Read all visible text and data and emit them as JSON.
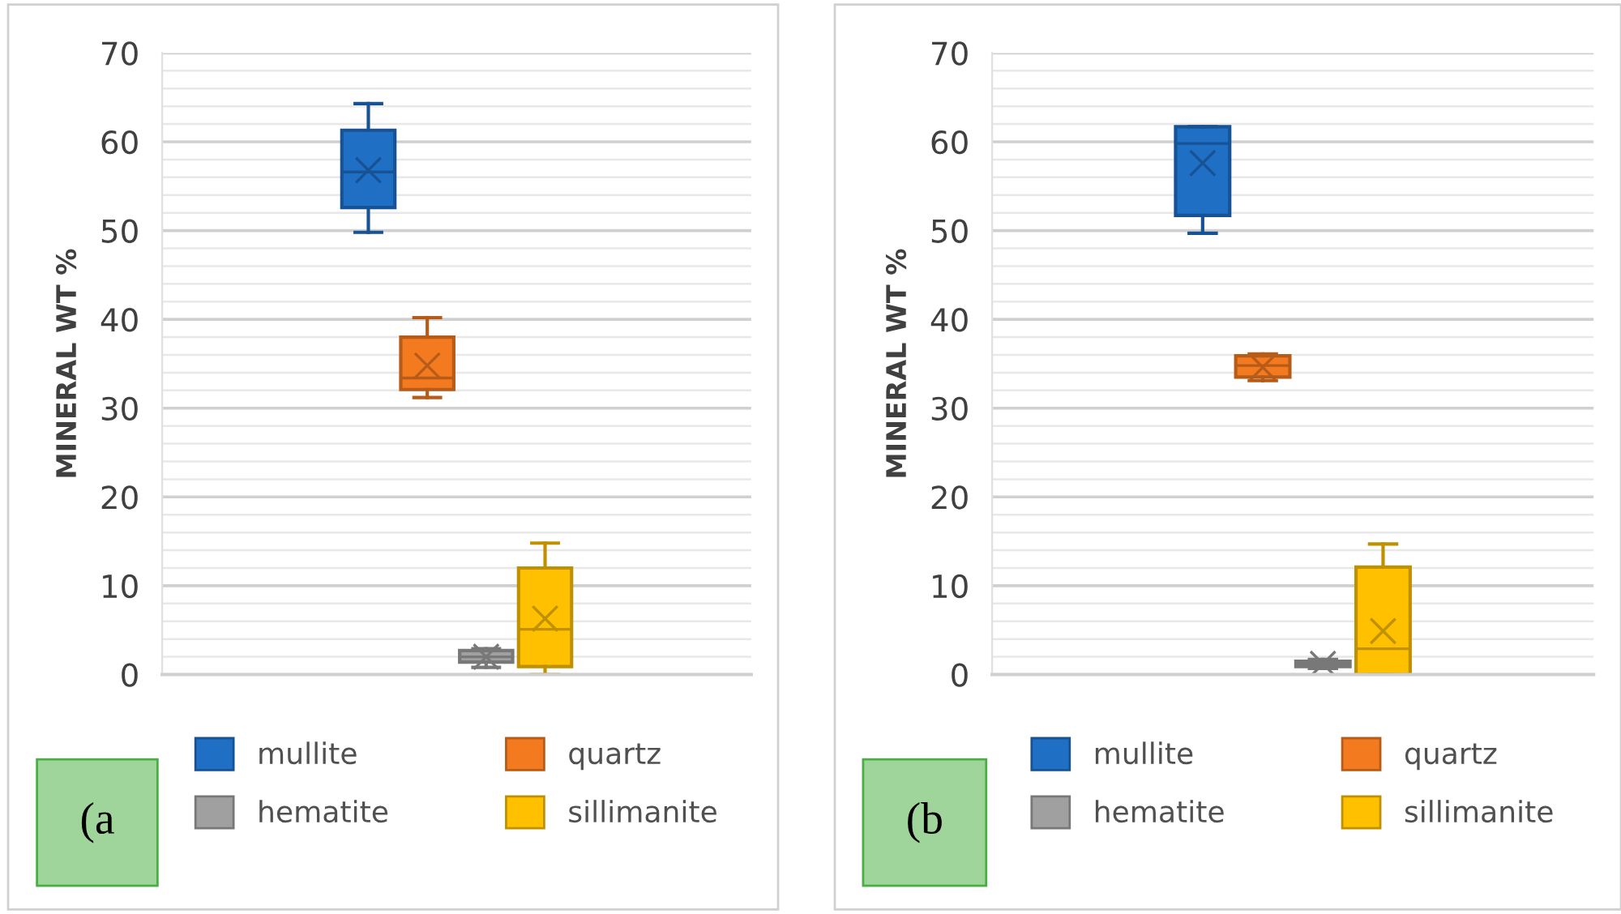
{
  "chart_data": [
    {
      "type": "box",
      "categories": [
        null
      ],
      "ylabel": "MINERAL WT %",
      "ylim": [
        0,
        70
      ],
      "yticks": [
        0,
        {
          "value": 2,
          "label": null
        },
        {
          "value": 4,
          "label": null
        },
        {
          "value": 6,
          "label": null
        },
        {
          "value": 8,
          "label": null
        },
        10,
        {
          "value": 12,
          "label": null
        },
        {
          "value": 14,
          "label": null
        },
        {
          "value": 16,
          "label": null
        },
        {
          "value": 18,
          "label": null
        },
        20,
        {
          "value": 22,
          "label": null
        },
        {
          "value": 24,
          "label": null
        },
        {
          "value": 26,
          "label": null
        },
        {
          "value": 28,
          "label": null
        },
        30,
        {
          "value": 32,
          "label": null
        },
        {
          "value": 34,
          "label": null
        },
        {
          "value": 36,
          "label": null
        },
        {
          "value": 38,
          "label": null
        },
        40,
        {
          "value": 42,
          "label": null
        },
        {
          "value": 44,
          "label": null
        },
        {
          "value": 46,
          "label": null
        },
        {
          "value": 48,
          "label": null
        },
        50,
        {
          "value": 52,
          "label": null
        },
        {
          "value": 54,
          "label": null
        },
        {
          "value": 56,
          "label": null
        },
        {
          "value": 58,
          "label": null
        },
        60,
        {
          "value": 62,
          "label": null
        },
        {
          "value": 64,
          "label": null
        },
        {
          "value": 66,
          "label": null
        },
        {
          "value": 68,
          "label": null
        },
        70
      ],
      "grid": "y",
      "legend": "bottom",
      "tick_labels": "y",
      "annotations": [
        "(a"
      ],
      "series": [
        {
          "name": "mullite",
          "color": "#1f6fc5",
          "boxes": [
            {
              "low": 49.8,
              "q1": 52.6,
              "median": 56.6,
              "q3": 61.3,
              "high": 64.3,
              "mean": 56.8
            }
          ]
        },
        {
          "name": "quartz",
          "color": "#f47a20",
          "boxes": [
            {
              "low": 31.2,
              "q1": 32.1,
              "median": 33.4,
              "q3": 38.0,
              "high": 40.2,
              "mean": 34.8
            }
          ]
        },
        {
          "name": "hematite",
          "color": "#a0a0a0",
          "boxes": [
            {
              "low": 0.8,
              "q1": 1.4,
              "median": 2.0,
              "q3": 2.7,
              "high": 2.9,
              "mean": 2.0
            }
          ]
        },
        {
          "name": "sillimanite",
          "color": "#ffc000",
          "boxes": [
            {
              "low": 0,
              "q1": 0.9,
              "median": 5.1,
              "q3": 12.0,
              "high": 14.8,
              "mean": 6.3
            }
          ]
        }
      ]
    },
    {
      "type": "box",
      "categories": [
        null
      ],
      "ylabel": "MINERAL WT %",
      "ylim": [
        0,
        70
      ],
      "yticks": [
        0,
        {
          "value": 2,
          "label": null
        },
        {
          "value": 4,
          "label": null
        },
        {
          "value": 6,
          "label": null
        },
        {
          "value": 8,
          "label": null
        },
        10,
        {
          "value": 12,
          "label": null
        },
        {
          "value": 14,
          "label": null
        },
        {
          "value": 16,
          "label": null
        },
        {
          "value": 18,
          "label": null
        },
        20,
        {
          "value": 22,
          "label": null
        },
        {
          "value": 24,
          "label": null
        },
        {
          "value": 26,
          "label": null
        },
        {
          "value": 28,
          "label": null
        },
        30,
        {
          "value": 32,
          "label": null
        },
        {
          "value": 34,
          "label": null
        },
        {
          "value": 36,
          "label": null
        },
        {
          "value": 38,
          "label": null
        },
        40,
        {
          "value": 42,
          "label": null
        },
        {
          "value": 44,
          "label": null
        },
        {
          "value": 46,
          "label": null
        },
        {
          "value": 48,
          "label": null
        },
        50,
        {
          "value": 52,
          "label": null
        },
        {
          "value": 54,
          "label": null
        },
        {
          "value": 56,
          "label": null
        },
        {
          "value": 58,
          "label": null
        },
        60,
        {
          "value": 62,
          "label": null
        },
        {
          "value": 64,
          "label": null
        },
        {
          "value": 66,
          "label": null
        },
        {
          "value": 68,
          "label": null
        },
        70
      ],
      "grid": "y",
      "legend": "bottom",
      "tick_labels": "y",
      "annotations": [
        "(b"
      ],
      "series": [
        {
          "name": "mullite",
          "color": "#1f6fc5",
          "boxes": [
            {
              "low": 49.7,
              "q1": 51.7,
              "median": 59.8,
              "q3": 61.7,
              "high": 61.7,
              "mean": 57.6
            }
          ]
        },
        {
          "name": "quartz",
          "color": "#f47a20",
          "boxes": [
            {
              "low": 33.1,
              "q1": 33.5,
              "median": 34.8,
              "q3": 35.9,
              "high": 36.1,
              "mean": 34.6
            }
          ]
        },
        {
          "name": "hematite",
          "color": "#a0a0a0",
          "boxes": [
            {
              "low": 0.7,
              "q1": 0.9,
              "median": 1.2,
              "q3": 1.5,
              "high": 1.7,
              "mean": 1.2
            }
          ]
        },
        {
          "name": "sillimanite",
          "color": "#ffc000",
          "boxes": [
            {
              "low": 0,
              "q1": 0,
              "median": 2.9,
              "q3": 12.1,
              "high": 14.7,
              "mean": 4.9
            }
          ]
        }
      ]
    }
  ]
}
